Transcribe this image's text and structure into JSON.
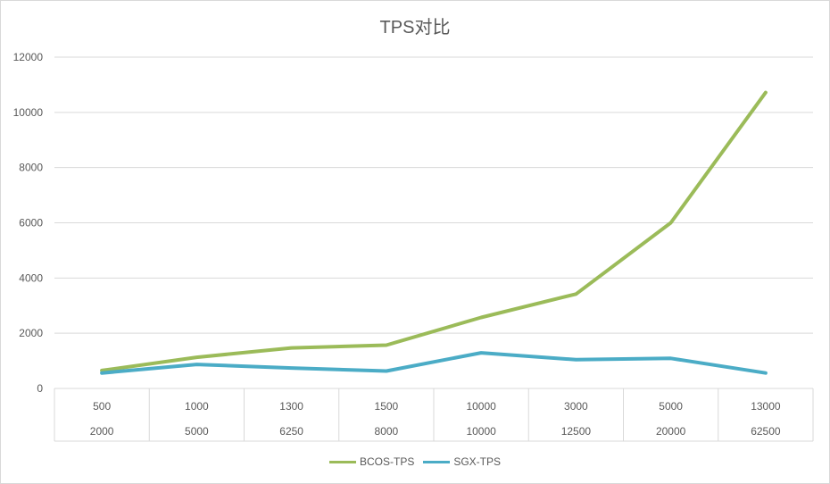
{
  "chart_data": {
    "type": "line",
    "title": "TPS对比",
    "categories": [
      [
        "500",
        "2000"
      ],
      [
        "1000",
        "5000"
      ],
      [
        "1300",
        "6250"
      ],
      [
        "1500",
        "8000"
      ],
      [
        "10000",
        "10000"
      ],
      [
        "3000",
        "12500"
      ],
      [
        "5000",
        "20000"
      ],
      [
        "13000",
        "62500"
      ]
    ],
    "series": [
      {
        "name": "BCOS-TPS",
        "color": "#9bbb59",
        "values": [
          650,
          1130,
          1470,
          1570,
          2570,
          3420,
          6000,
          10720
        ]
      },
      {
        "name": "SGX-TPS",
        "color": "#4bacc6",
        "values": [
          560,
          870,
          740,
          630,
          1290,
          1040,
          1090,
          560
        ]
      }
    ],
    "ylim": [
      0,
      12000
    ],
    "yticks": [
      0,
      2000,
      4000,
      6000,
      8000,
      10000,
      12000
    ],
    "grid": true,
    "legend": "bottom"
  }
}
